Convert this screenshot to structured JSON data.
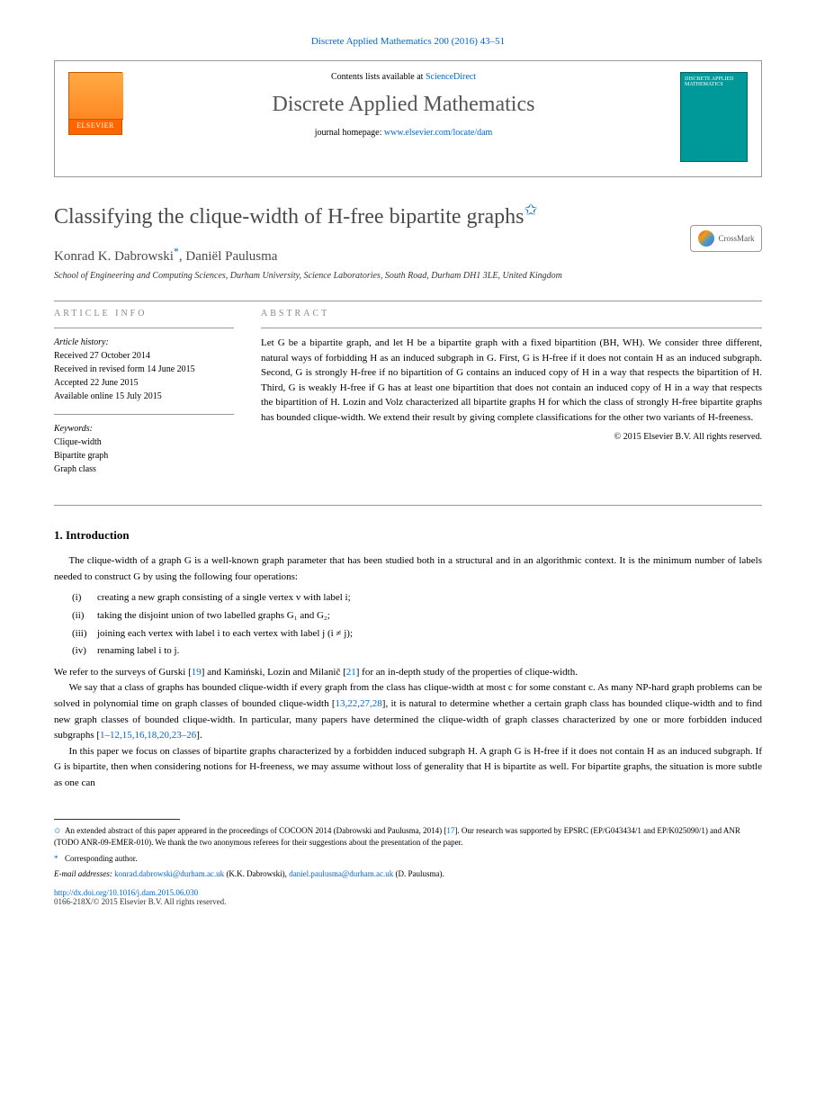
{
  "top_citation": "Discrete Applied Mathematics 200 (2016) 43–51",
  "header": {
    "contents_prefix": "Contents lists available at ",
    "contents_link": "ScienceDirect",
    "journal_title": "Discrete Applied Mathematics",
    "homepage_prefix": "journal homepage: ",
    "homepage_link": "www.elsevier.com/locate/dam",
    "elsevier_label": "ELSEVIER",
    "cover_text": "DISCRETE APPLIED MATHEMATICS"
  },
  "crossmark_label": "CrossMark",
  "article": {
    "title": "Classifying the clique-width of H-free bipartite graphs",
    "title_star": "✩",
    "authors": [
      {
        "name": "Konrad K. Dabrowski",
        "marker": "*"
      },
      {
        "name": "Daniël Paulusma",
        "marker": ""
      }
    ],
    "authors_joined": "Konrad K. Dabrowski",
    "author2": ", Daniël Paulusma",
    "affiliation": "School of Engineering and Computing Sciences, Durham University, Science Laboratories, South Road, Durham DH1 3LE, United Kingdom"
  },
  "info": {
    "heading": "ARTICLE INFO",
    "history_label": "Article history:",
    "history": [
      "Received 27 October 2014",
      "Received in revised form 14 June 2015",
      "Accepted 22 June 2015",
      "Available online 15 July 2015"
    ],
    "keywords_label": "Keywords:",
    "keywords": [
      "Clique-width",
      "Bipartite graph",
      "Graph class"
    ]
  },
  "abstract": {
    "heading": "ABSTRACT",
    "text": "Let G be a bipartite graph, and let H be a bipartite graph with a fixed bipartition (BH, WH). We consider three different, natural ways of forbidding H as an induced subgraph in G. First, G is H-free if it does not contain H as an induced subgraph. Second, G is strongly H-free if no bipartition of G contains an induced copy of H in a way that respects the bipartition of H. Third, G is weakly H-free if G has at least one bipartition that does not contain an induced copy of H in a way that respects the bipartition of H. Lozin and Volz characterized all bipartite graphs H for which the class of strongly H-free bipartite graphs has bounded clique-width. We extend their result by giving complete classifications for the other two variants of H-freeness.",
    "copyright": "© 2015 Elsevier B.V. All rights reserved."
  },
  "section1": {
    "heading": "1. Introduction",
    "p1": "The clique-width of a graph G is a well-known graph parameter that has been studied both in a structural and in an algorithmic context. It is the minimum number of labels needed to construct G by using the following four operations:",
    "ops": [
      {
        "num": "(i)",
        "text": "creating a new graph consisting of a single vertex v with label i;"
      },
      {
        "num": "(ii)",
        "text": "taking the disjoint union of two labelled graphs G₁ and G₂;"
      },
      {
        "num": "(iii)",
        "text": "joining each vertex with label i to each vertex with label j (i ≠ j);"
      },
      {
        "num": "(iv)",
        "text": "renaming label i to j."
      }
    ],
    "p2_a": "We refer to the surveys of Gurski [",
    "p2_ref1": "19",
    "p2_b": "] and Kamiński, Lozin and Milanič [",
    "p2_ref2": "21",
    "p2_c": "] for an in-depth study of the properties of clique-width.",
    "p3_a": "We say that a class of graphs has bounded clique-width if every graph from the class has clique-width at most c for some constant c. As many NP-hard graph problems can be solved in polynomial time on graph classes of bounded clique-width [",
    "p3_ref": "13,22,27,28",
    "p3_b": "], it is natural to determine whether a certain graph class has bounded clique-width and to find new graph classes of bounded clique-width. In particular, many papers have determined the clique-width of graph classes characterized by one or more forbidden induced subgraphs [",
    "p3_ref2": "1–12,15,16,18,20,23–26",
    "p3_c": "].",
    "p4": "In this paper we focus on classes of bipartite graphs characterized by a forbidden induced subgraph H. A graph G is H-free if it does not contain H as an induced subgraph. If G is bipartite, then when considering notions for H-freeness, we may assume without loss of generality that H is bipartite as well. For bipartite graphs, the situation is more subtle as one can"
  },
  "footnotes": {
    "fn1_star": "✩",
    "fn1_a": "An extended abstract of this paper appeared in the proceedings of COCOON 2014 (Dabrowski and Paulusma, 2014) [",
    "fn1_ref": "17",
    "fn1_b": "]. Our research was supported by EPSRC (EP/G043434/1 and EP/K025090/1) and ANR (TODO ANR-09-EMER-010). We thank the two anonymous referees for their suggestions about the presentation of the paper.",
    "fn2_star": "*",
    "fn2": "Corresponding author.",
    "emails_label": "E-mail addresses: ",
    "email1": "konrad.dabrowski@durham.ac.uk",
    "email1_author": " (K.K. Dabrowski), ",
    "email2": "daniel.paulusma@durham.ac.uk",
    "email2_author": " (D. Paulusma).",
    "doi": "http://dx.doi.org/10.1016/j.dam.2015.06.030",
    "issn": "0166-218X/© 2015 Elsevier B.V. All rights reserved."
  },
  "colors": {
    "link": "#0066cc",
    "elsevier": "#ff6600",
    "cover": "#009999",
    "text_gray": "#4a4a4a"
  }
}
